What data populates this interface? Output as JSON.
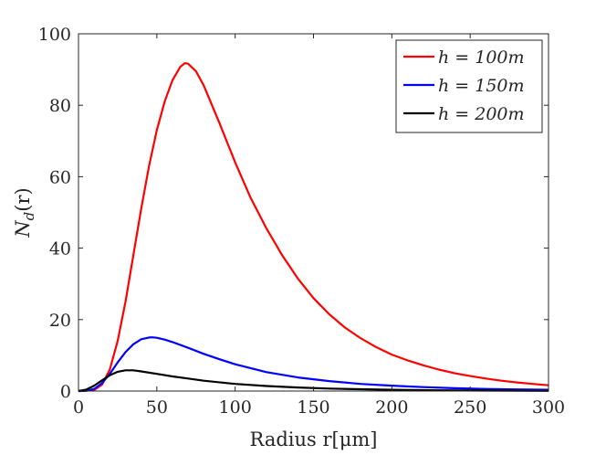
{
  "chart_data": {
    "type": "line",
    "title": "",
    "xlabel": "Radius r[μm]",
    "ylabel": "N_d(r)",
    "ylabel_main": "N",
    "ylabel_sub": "d",
    "ylabel_tail": "(r)",
    "xlim": [
      0,
      300
    ],
    "ylim": [
      0,
      100
    ],
    "xticks": [
      0,
      50,
      100,
      150,
      200,
      250,
      300
    ],
    "yticks": [
      0,
      20,
      40,
      60,
      80,
      100
    ],
    "grid": false,
    "legend_position": "top-right",
    "series": [
      {
        "name": "h = 100m",
        "color": "#ff0000",
        "points": [
          [
            0,
            0
          ],
          [
            10,
            0.3
          ],
          [
            15,
            1.8
          ],
          [
            20,
            6
          ],
          [
            25,
            14
          ],
          [
            30,
            25
          ],
          [
            35,
            38
          ],
          [
            40,
            51
          ],
          [
            45,
            63
          ],
          [
            50,
            73
          ],
          [
            55,
            81
          ],
          [
            60,
            87
          ],
          [
            65,
            90.8
          ],
          [
            68,
            91.8
          ],
          [
            70,
            91.6
          ],
          [
            75,
            89.5
          ],
          [
            80,
            85.5
          ],
          [
            90,
            75
          ],
          [
            100,
            64
          ],
          [
            110,
            54
          ],
          [
            120,
            45.5
          ],
          [
            130,
            38
          ],
          [
            140,
            31.5
          ],
          [
            150,
            26
          ],
          [
            160,
            21.5
          ],
          [
            170,
            17.8
          ],
          [
            180,
            14.8
          ],
          [
            190,
            12.3
          ],
          [
            200,
            10.2
          ],
          [
            210,
            8.6
          ],
          [
            220,
            7.2
          ],
          [
            230,
            6.0
          ],
          [
            240,
            5.0
          ],
          [
            250,
            4.2
          ],
          [
            260,
            3.5
          ],
          [
            270,
            2.9
          ],
          [
            280,
            2.4
          ],
          [
            290,
            2.0
          ],
          [
            300,
            1.6
          ]
        ]
      },
      {
        "name": "h = 150m",
        "color": "#0000ff",
        "points": [
          [
            0,
            0
          ],
          [
            5,
            0.05
          ],
          [
            10,
            0.6
          ],
          [
            15,
            2.2
          ],
          [
            20,
            4.8
          ],
          [
            25,
            8
          ],
          [
            30,
            10.9
          ],
          [
            35,
            13.1
          ],
          [
            40,
            14.5
          ],
          [
            45,
            15.0
          ],
          [
            47,
            15.05
          ],
          [
            50,
            14.9
          ],
          [
            55,
            14.4
          ],
          [
            60,
            13.7
          ],
          [
            70,
            12.1
          ],
          [
            80,
            10.4
          ],
          [
            90,
            8.9
          ],
          [
            100,
            7.5
          ],
          [
            120,
            5.3
          ],
          [
            140,
            3.8
          ],
          [
            160,
            2.8
          ],
          [
            180,
            2.0
          ],
          [
            200,
            1.5
          ],
          [
            220,
            1.1
          ],
          [
            240,
            0.8
          ],
          [
            260,
            0.6
          ],
          [
            280,
            0.45
          ],
          [
            300,
            0.35
          ]
        ]
      },
      {
        "name": "h = 200m",
        "color": "#000000",
        "points": [
          [
            0,
            0
          ],
          [
            5,
            0.4
          ],
          [
            10,
            1.5
          ],
          [
            15,
            3.0
          ],
          [
            20,
            4.4
          ],
          [
            25,
            5.4
          ],
          [
            30,
            5.8
          ],
          [
            35,
            5.8
          ],
          [
            40,
            5.5
          ],
          [
            50,
            4.8
          ],
          [
            60,
            4.1
          ],
          [
            70,
            3.5
          ],
          [
            80,
            2.9
          ],
          [
            100,
            2.0
          ],
          [
            120,
            1.4
          ],
          [
            140,
            1.0
          ],
          [
            160,
            0.7
          ],
          [
            180,
            0.5
          ],
          [
            200,
            0.35
          ],
          [
            230,
            0.2
          ],
          [
            260,
            0.12
          ],
          [
            300,
            0.06
          ]
        ]
      }
    ]
  }
}
